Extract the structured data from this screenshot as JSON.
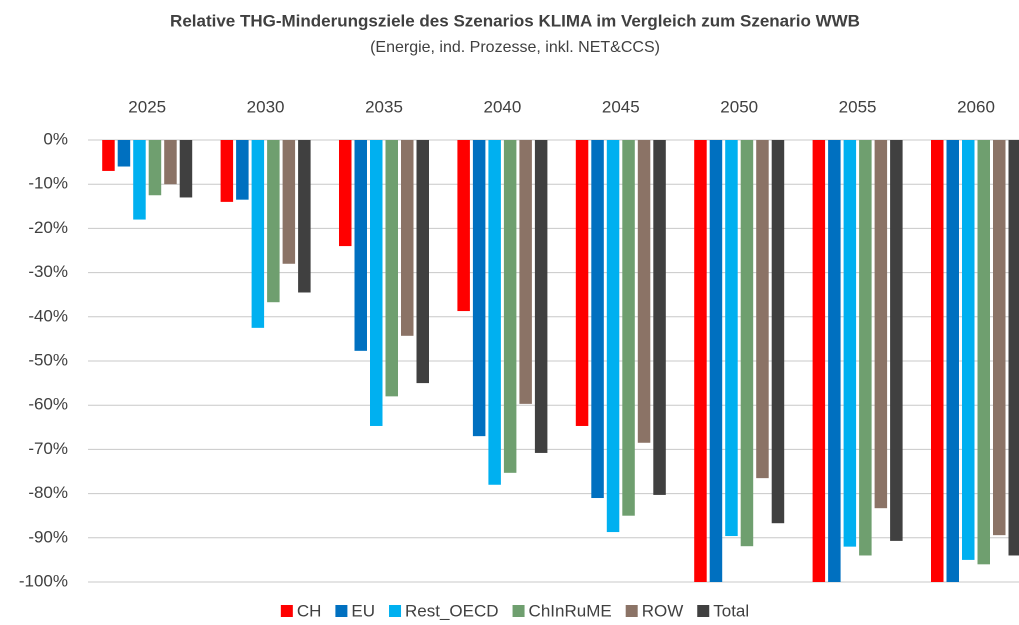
{
  "chart_data": {
    "type": "bar",
    "title": "Relative THG-Minderungsziele des Szenarios KLIMA im Vergleich zum Szenario WWB",
    "subtitle": "(Energie, ind. Prozesse, inkl. NET&CCS)",
    "categories": [
      "2025",
      "2030",
      "2035",
      "2040",
      "2045",
      "2050",
      "2055",
      "2060"
    ],
    "series": [
      {
        "name": "CH",
        "color": "#ff0000",
        "values": [
          -7,
          -14,
          -24,
          -38.7,
          -64.7,
          -100,
          -100,
          -100
        ]
      },
      {
        "name": "EU",
        "color": "#0070c0",
        "values": [
          -6,
          -13.5,
          -47.7,
          -67,
          -81,
          -100,
          -100,
          -100
        ]
      },
      {
        "name": "Rest_OECD",
        "color": "#00b0f0",
        "values": [
          -18,
          -42.5,
          -64.7,
          -78,
          -88.7,
          -89.6,
          -92,
          -95
        ]
      },
      {
        "name": "ChInRuME",
        "color": "#6f9f6f",
        "values": [
          -12.5,
          -36.7,
          -58,
          -75.3,
          -85,
          -91.9,
          -94,
          -96
        ]
      },
      {
        "name": "ROW",
        "color": "#8b7366",
        "values": [
          -10,
          -28,
          -44.3,
          -59.7,
          -68.5,
          -76.5,
          -83.3,
          -89.4
        ]
      },
      {
        "name": "Total",
        "color": "#404040",
        "values": [
          -13,
          -34.5,
          -55,
          -70.8,
          -80.3,
          -86.7,
          -90.7,
          -94
        ]
      }
    ],
    "ylim": [
      -100,
      0
    ],
    "yticks": [
      {
        "value": 0,
        "label": "0%"
      },
      {
        "value": -10,
        "label": "-10%"
      },
      {
        "value": -20,
        "label": "-20%"
      },
      {
        "value": -30,
        "label": "-30%"
      },
      {
        "value": -40,
        "label": "-40%"
      },
      {
        "value": -50,
        "label": "-50%"
      },
      {
        "value": -60,
        "label": "-60%"
      },
      {
        "value": -70,
        "label": "-70%"
      },
      {
        "value": -80,
        "label": "-80%"
      },
      {
        "value": -90,
        "label": "-90%"
      },
      {
        "value": -100,
        "label": "-100%"
      }
    ],
    "grid": true,
    "legend": "bottom"
  }
}
